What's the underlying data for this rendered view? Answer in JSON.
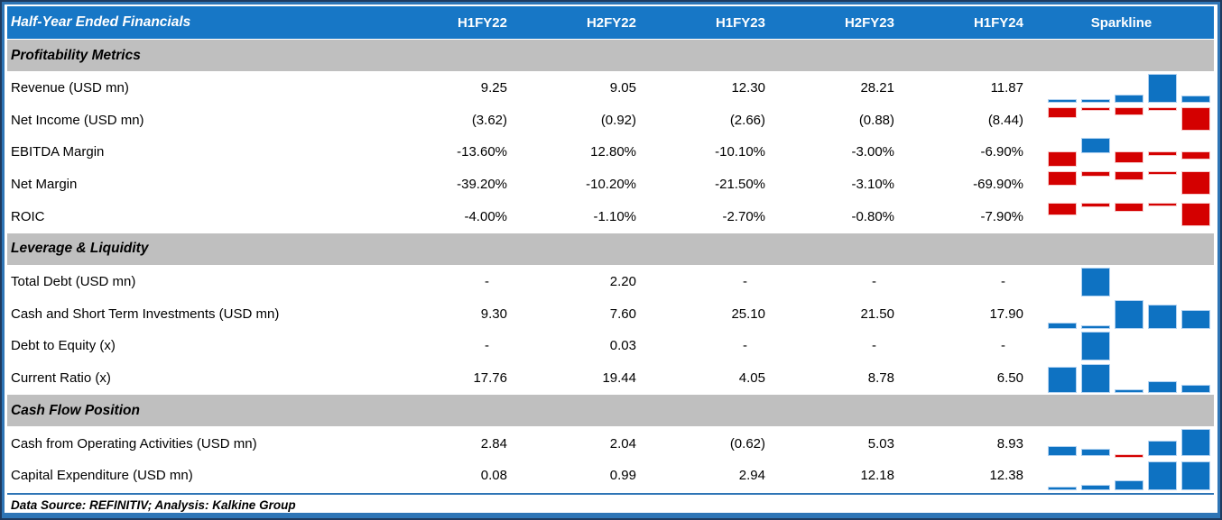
{
  "chart_data": {
    "type": "table",
    "title": "Half-Year Ended Financials",
    "columns": [
      "H1FY22",
      "H2FY22",
      "H1FY23",
      "H2FY23",
      "H1FY24"
    ],
    "sparkline_column": "Sparkline",
    "sparkline_style": "mini bar chart per row, scaled to row min-max, blue for positive values, red for negative values",
    "footer": "Data Source: REFINITIV; Analysis: Kalkine Group",
    "sections": [
      {
        "label": "Profitability Metrics",
        "rows": [
          {
            "label": "Revenue (USD mn)",
            "display": [
              "9.25",
              "9.05",
              "12.30",
              "28.21",
              "11.87"
            ],
            "values": [
              9.25,
              9.05,
              12.3,
              28.21,
              11.87
            ]
          },
          {
            "label": "Net Income (USD mn)",
            "display": [
              "(3.62)",
              "(0.92)",
              "(2.66)",
              "(0.88)",
              "(8.44)"
            ],
            "values": [
              -3.62,
              -0.92,
              -2.66,
              -0.88,
              -8.44
            ]
          },
          {
            "label": "EBITDA Margin",
            "display": [
              "-13.60%",
              "12.80%",
              "-10.10%",
              "-3.00%",
              "-6.90%"
            ],
            "values": [
              -13.6,
              12.8,
              -10.1,
              -3.0,
              -6.9
            ]
          },
          {
            "label": "Net Margin",
            "display": [
              "-39.20%",
              "-10.20%",
              "-21.50%",
              "-3.10%",
              "-69.90%"
            ],
            "values": [
              -39.2,
              -10.2,
              -21.5,
              -3.1,
              -69.9
            ]
          },
          {
            "label": "ROIC",
            "display": [
              "-4.00%",
              "-1.10%",
              "-2.70%",
              "-0.80%",
              "-7.90%"
            ],
            "values": [
              -4.0,
              -1.1,
              -2.7,
              -0.8,
              -7.9
            ]
          }
        ]
      },
      {
        "label": "Leverage & Liquidity",
        "rows": [
          {
            "label": "Total Debt (USD mn)",
            "display": [
              "-",
              "2.20",
              "-",
              "-",
              "-"
            ],
            "values": [
              null,
              2.2,
              null,
              null,
              null
            ]
          },
          {
            "label": "Cash and Short Term Investments (USD mn)",
            "display": [
              "9.30",
              "7.60",
              "25.10",
              "21.50",
              "17.90"
            ],
            "values": [
              9.3,
              7.6,
              25.1,
              21.5,
              17.9
            ]
          },
          {
            "label": "Debt to Equity (x)",
            "display": [
              "-",
              "0.03",
              "-",
              "-",
              "-"
            ],
            "values": [
              null,
              0.03,
              null,
              null,
              null
            ]
          },
          {
            "label": "Current Ratio (x)",
            "display": [
              "17.76",
              "19.44",
              "4.05",
              "8.78",
              "6.50"
            ],
            "values": [
              17.76,
              19.44,
              4.05,
              8.78,
              6.5
            ]
          }
        ]
      },
      {
        "label": "Cash Flow Position",
        "rows": [
          {
            "label": "Cash from Operating Activities (USD mn)",
            "display": [
              "2.84",
              "2.04",
              "(0.62)",
              "5.03",
              "8.93"
            ],
            "values": [
              2.84,
              2.04,
              -0.62,
              5.03,
              8.93
            ]
          },
          {
            "label": "Capital Expenditure (USD mn)",
            "display": [
              "0.08",
              "0.99",
              "2.94",
              "12.18",
              "12.38"
            ],
            "values": [
              0.08,
              0.99,
              2.94,
              12.18,
              12.38
            ]
          }
        ]
      }
    ]
  },
  "colors": {
    "header_bg": "#1777c6",
    "header_text": "#ffffff",
    "section_bg": "#bfbfbf",
    "frame_border": "#2e75b6",
    "outer_edge": "#1e3a5f",
    "positive_bar": "#0e72c2",
    "negative_bar": "#d40000",
    "body_text": "#000000"
  }
}
